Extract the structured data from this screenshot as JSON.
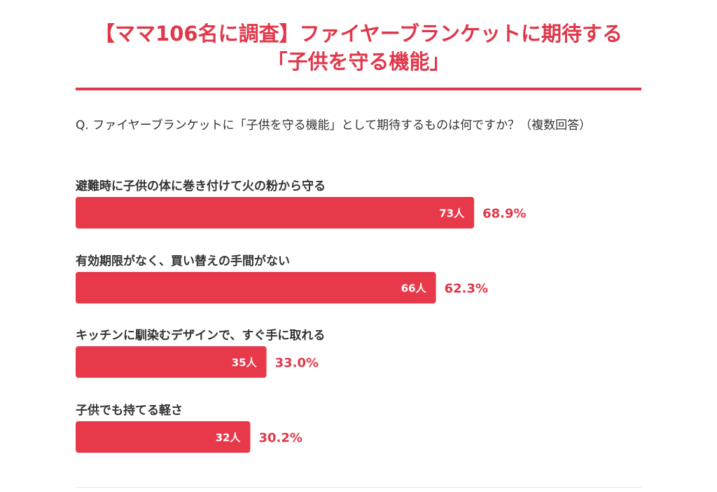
{
  "header": {
    "title_line1": "【ママ106名に調査】ファイヤーブランケットに期待する",
    "title_line2": "「子供を守る機能」"
  },
  "question": "Q. ファイヤーブランケットに「子供を守る機能」として期待するものは何ですか？（複数回答）",
  "colors": {
    "accent": "#e0384a",
    "bar": "#e8394b",
    "text": "#333333"
  },
  "chart_data": {
    "type": "bar",
    "orientation": "horizontal",
    "categories": [
      "避難時に子供の体に巻き付けて火の粉から守る",
      "有効期限がなく、買い替えの手間がない",
      "キッチンに馴染むデザインで、すぐ手に取れる",
      "子供でも持てる軽さ"
    ],
    "values": [
      68.9,
      62.3,
      33.0,
      30.2
    ],
    "count_labels": [
      "73人",
      "66人",
      "35人",
      "32人"
    ],
    "percent_labels": [
      "68.9%",
      "62.3%",
      "33.0%",
      "30.2%"
    ],
    "xlim": [
      0,
      100
    ],
    "grid": false,
    "legend": "none"
  }
}
